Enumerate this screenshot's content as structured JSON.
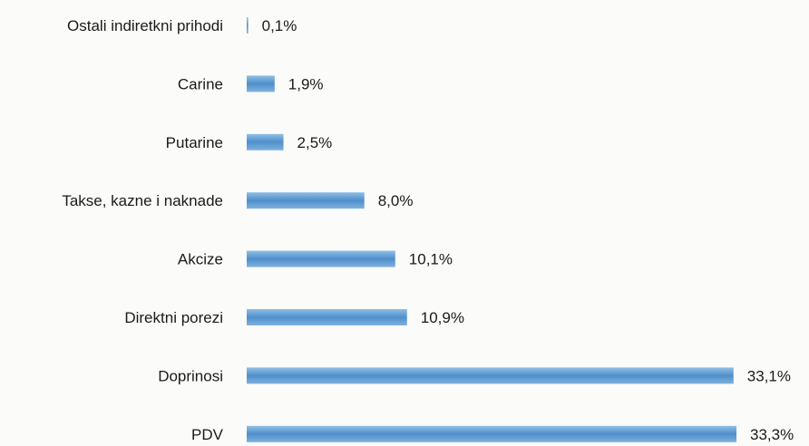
{
  "chart_data": {
    "type": "bar",
    "orientation": "horizontal",
    "title": "",
    "xlabel": "",
    "ylabel": "",
    "grid": false,
    "legend": "none",
    "categories": [
      "Ostali indiretkni prihodi",
      "Carine",
      "Putarine",
      "Takse, kazne i naknade",
      "Akcize",
      "Direktni porezi",
      "Doprinosi",
      "PDV"
    ],
    "values": [
      0.1,
      1.9,
      2.5,
      8.0,
      10.1,
      10.9,
      33.1,
      33.3
    ],
    "value_labels": [
      "0,1%",
      "1,9%",
      "2,5%",
      "8,0%",
      "10,1%",
      "10,9%",
      "33,1%",
      "33,3%"
    ],
    "xlim": [
      0,
      33.3
    ],
    "bar_color": "#5b9bd5"
  }
}
